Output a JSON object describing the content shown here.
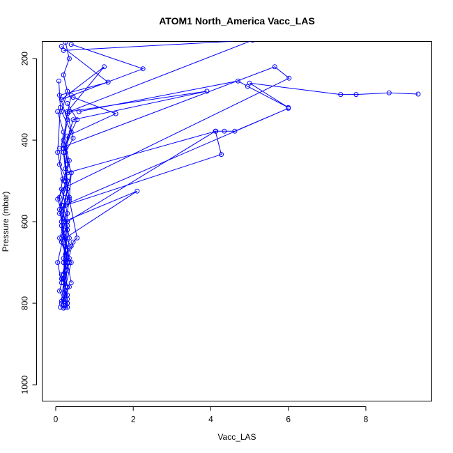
{
  "chart_data": {
    "type": "line",
    "title": "ATOM1 North_America Vacc_LAS",
    "xlabel": "Vacc_LAS",
    "ylabel": "Pressure (mbar)",
    "xlim": [
      -0.35,
      9.7
    ],
    "ylim": [
      1040,
      158
    ],
    "y_reversed": true,
    "xticks": [
      0,
      2,
      4,
      6,
      8
    ],
    "yticks": [
      200,
      400,
      600,
      800,
      1000
    ],
    "color": "#0000ff",
    "marker": "open-circle",
    "grid": false,
    "series": [
      {
        "x": [
          0.25,
          0.35,
          0.2,
          0.3,
          0.15,
          0.4,
          0.25,
          0.3,
          0.2,
          0.35,
          0.1,
          0.3,
          0.25,
          0.4,
          0.2,
          0.3,
          0.15,
          0.35,
          0.25,
          0.2,
          0.3,
          0.25,
          0.3,
          0.2
        ],
        "y": [
          160,
          200,
          240,
          280,
          330,
          380,
          420,
          460,
          500,
          540,
          580,
          610,
          640,
          660,
          690,
          720,
          740,
          760,
          780,
          790,
          800,
          805,
          810,
          812
        ]
      },
      {
        "x": [
          0.4,
          2.25,
          0.15,
          1.25,
          0.3,
          0.2,
          0.35,
          0.25,
          0.15,
          0.3,
          0.25,
          0.2,
          0.3,
          0.25
        ],
        "y": [
          165,
          225,
          300,
          220,
          330,
          400,
          450,
          500,
          560,
          620,
          680,
          740,
          790,
          810
        ]
      },
      {
        "x": [
          0.15,
          1.35,
          0.1,
          0.3,
          0.2,
          0.4,
          0.25,
          0.15,
          0.3,
          0.2,
          0.25
        ],
        "y": [
          170,
          258,
          290,
          350,
          410,
          480,
          540,
          600,
          670,
          740,
          800
        ]
      },
      {
        "x": [
          0.2,
          5.08,
          0.35,
          3.9,
          0.45,
          0.2,
          0.3,
          0.15,
          0.25,
          0.2
        ],
        "y": [
          180,
          155,
          330,
          280,
          350,
          430,
          520,
          610,
          700,
          790
        ]
      },
      {
        "x": [
          0.45,
          1.55,
          0.3,
          0.25,
          0.35,
          0.2,
          0.3,
          0.25,
          0.2
        ],
        "y": [
          295,
          335,
          390,
          470,
          550,
          620,
          700,
          770,
          805
        ]
      },
      {
        "x": [
          0.3,
          0.55,
          0.2,
          0.3,
          0.1,
          0.25,
          0.2,
          0.3
        ],
        "y": [
          310,
          350,
          420,
          500,
          570,
          660,
          730,
          800
        ]
      },
      {
        "x": [
          0.6,
          4.7,
          4.95,
          6.0,
          5.0,
          7.35,
          7.75,
          8.6,
          9.35
        ],
        "y": [
          330,
          255,
          268,
          320,
          260,
          288,
          288,
          284,
          287
        ]
      },
      {
        "x": [
          0.1,
          5.65,
          6.02,
          0.15,
          0.3,
          0.25,
          0.2,
          0.3,
          0.15
        ],
        "y": [
          420,
          220,
          248,
          520,
          580,
          640,
          700,
          760,
          800
        ]
      },
      {
        "x": [
          0.3,
          4.13,
          4.35,
          4.62,
          6.0,
          0.2,
          0.35,
          0.25
        ],
        "y": [
          480,
          378,
          378,
          378,
          322,
          560,
          640,
          720
        ]
      },
      {
        "x": [
          0.25,
          4.27,
          4.12,
          0.3,
          0.15,
          0.4,
          0.25
        ],
        "y": [
          560,
          435,
          378,
          600,
          650,
          700,
          760
        ]
      },
      {
        "x": [
          0.2,
          2.1,
          0.25,
          0.35,
          0.15,
          0.3
        ],
        "y": [
          600,
          525,
          640,
          690,
          730,
          780
        ]
      },
      {
        "x": [
          0.05,
          0.2,
          0.1,
          0.3,
          0.05,
          0.25,
          0.1,
          0.35,
          0.2,
          0.15
        ],
        "y": [
          330,
          380,
          460,
          500,
          545,
          600,
          640,
          700,
          750,
          795
        ]
      },
      {
        "x": [
          0.4,
          0.3,
          0.45,
          0.25,
          0.4,
          0.35,
          0.55,
          0.45,
          0.3,
          0.4
        ],
        "y": [
          290,
          335,
          395,
          430,
          480,
          545,
          640,
          650,
          700,
          750
        ]
      },
      {
        "x": [
          0.08,
          0.12,
          0.05,
          0.18,
          0.1,
          0.2,
          0.05,
          0.15,
          0.1,
          0.2,
          0.12
        ],
        "y": [
          255,
          320,
          430,
          495,
          540,
          635,
          700,
          750,
          770,
          790,
          810
        ]
      }
    ]
  }
}
